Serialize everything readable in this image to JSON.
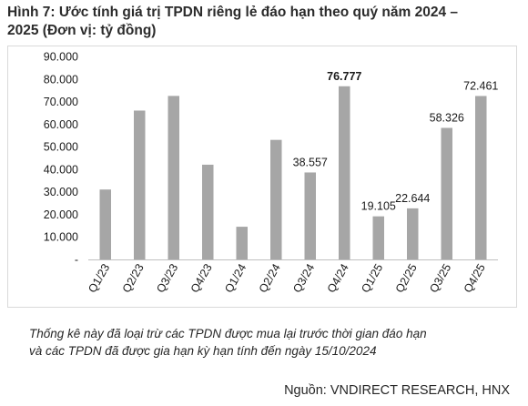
{
  "title": {
    "line1": "Hình 7: Ước tính giá trị TPDN riêng lẻ đáo hạn theo quý năm 2024 –",
    "line2": "2025 (Đơn vị: tỷ đồng)"
  },
  "note": {
    "line1": "Thống kê này đã loại trừ các TPDN được mua lại trước thời gian đáo hạn",
    "line2": "và các TPDN đã được gia hạn kỳ hạn tính đến ngày 15/10/2024"
  },
  "source": "Nguồn: VNDIRECT RESEARCH, HNX",
  "chart_data": {
    "type": "bar",
    "categories": [
      "Q1/23",
      "Q2/23",
      "Q3/23",
      "Q4/23",
      "Q1/24",
      "Q2/24",
      "Q3/24",
      "Q4/24",
      "Q1/25",
      "Q2/25",
      "Q3/25",
      "Q4/25"
    ],
    "values": [
      31000,
      66000,
      72500,
      42000,
      14500,
      53000,
      38557,
      76777,
      19105,
      22644,
      58326,
      72461
    ],
    "data_labels": [
      {
        "index": 6,
        "text": "38.557",
        "bold": false
      },
      {
        "index": 7,
        "text": "76.777",
        "bold": true
      },
      {
        "index": 8,
        "text": "19.105",
        "bold": false
      },
      {
        "index": 9,
        "text": "22.644",
        "bold": false
      },
      {
        "index": 10,
        "text": "58.326",
        "bold": false
      },
      {
        "index": 11,
        "text": "72.461",
        "bold": false
      }
    ],
    "yticks": [
      {
        "value": 0,
        "label": "-"
      },
      {
        "value": 10000,
        "label": "10.000"
      },
      {
        "value": 20000,
        "label": "20.000"
      },
      {
        "value": 30000,
        "label": "30.000"
      },
      {
        "value": 40000,
        "label": "40.000"
      },
      {
        "value": 50000,
        "label": "50.000"
      },
      {
        "value": 60000,
        "label": "60.000"
      },
      {
        "value": 70000,
        "label": "70.000"
      },
      {
        "value": 80000,
        "label": "80.000"
      },
      {
        "value": 90000,
        "label": "90.000"
      }
    ],
    "ylim": [
      0,
      90000
    ],
    "grid": false,
    "bar_color": "#a6a6a6",
    "axis_color": "#bfbfbf"
  }
}
